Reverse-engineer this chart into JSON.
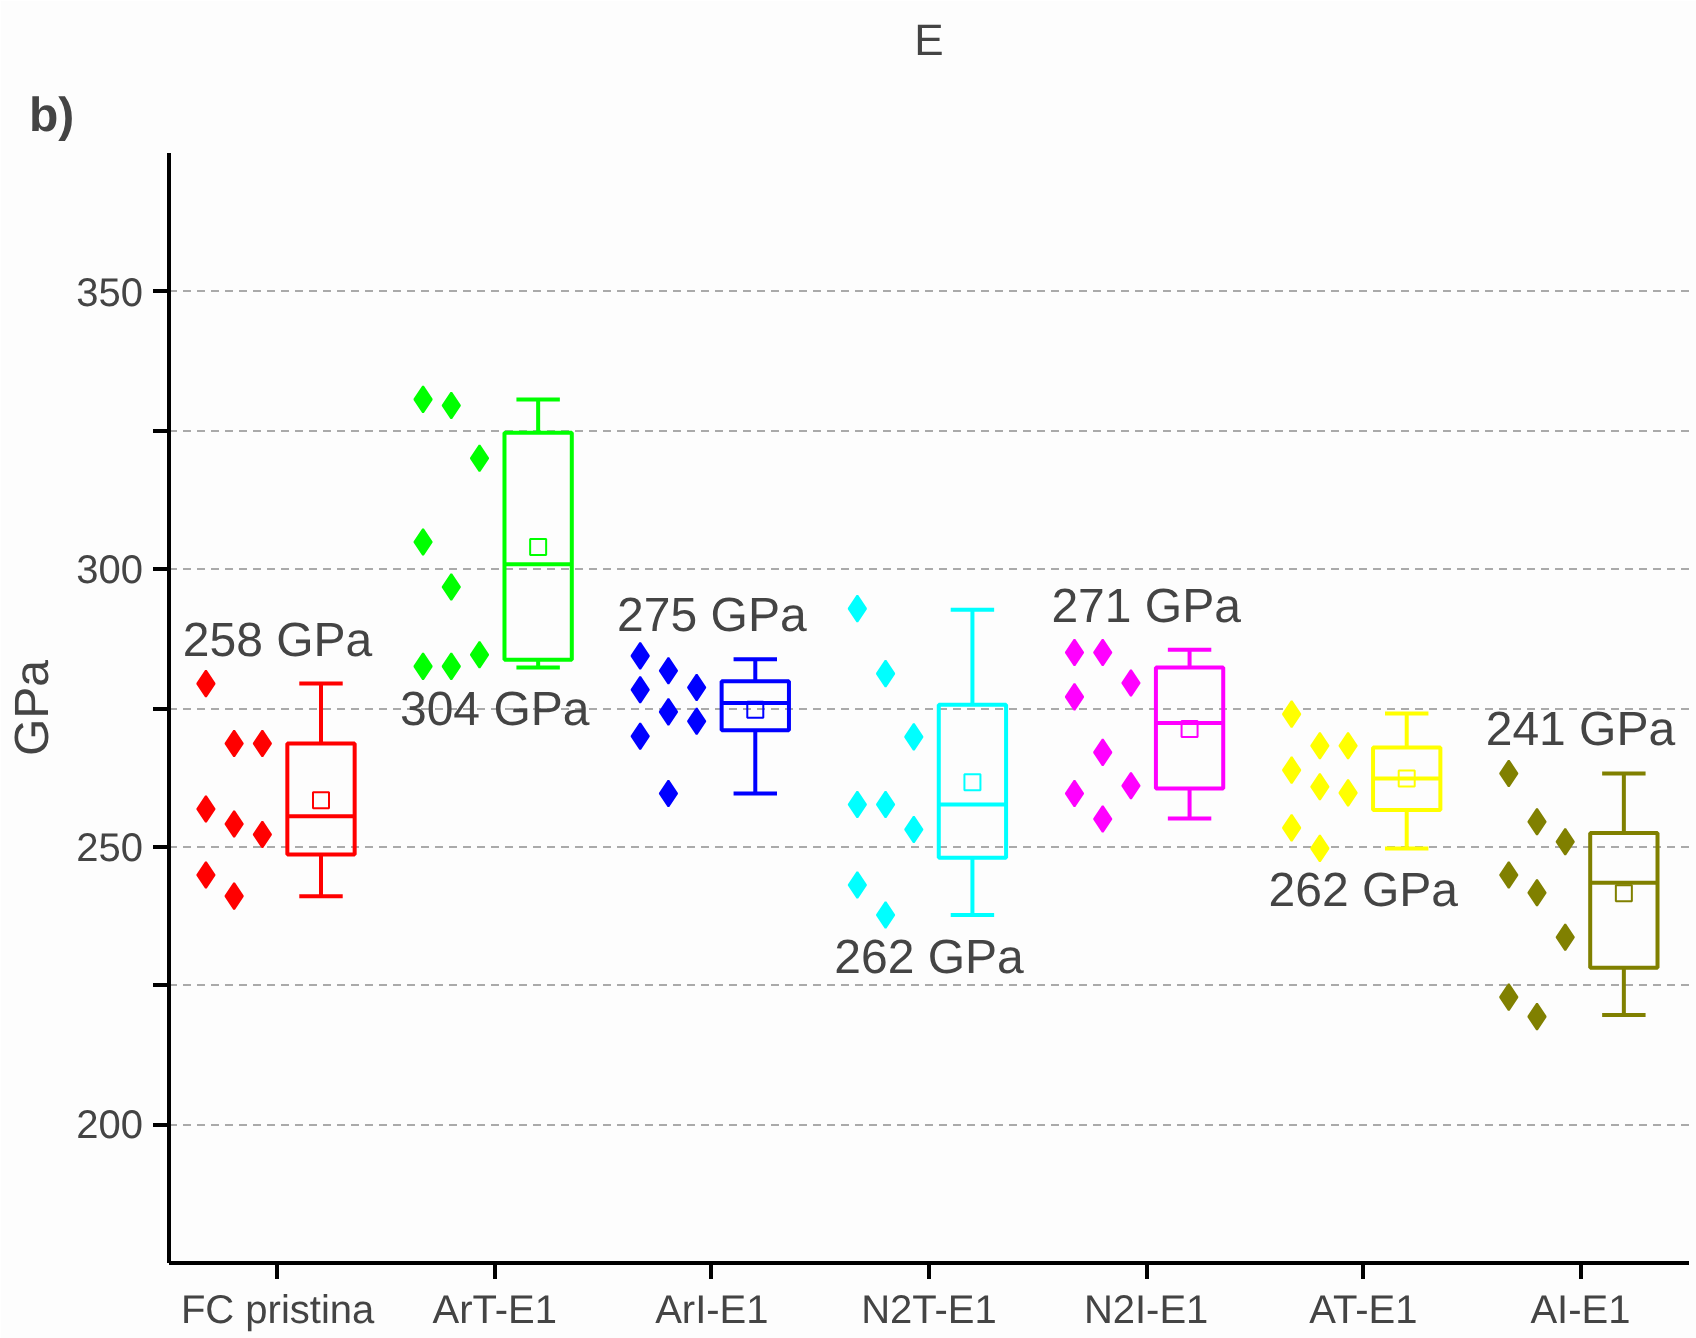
{
  "chart_data": {
    "type": "box",
    "title": "E",
    "ylabel": "GPa",
    "categories": [
      "FC pristina",
      "ArT-E1",
      "ArI-E1",
      "N2T-E1",
      "N2I-E1",
      "AT-E1",
      "AI-E1"
    ],
    "colors": [
      "#ff0000",
      "#00ff00",
      "#0000ff",
      "#00ffff",
      "#ff00ff",
      "#ffff00",
      "#808000"
    ],
    "boxes": [
      {
        "low": 241.1,
        "q1": 248.6,
        "median": 255.5,
        "q3": 268.6,
        "high": 279.4,
        "mean": 258.4
      },
      {
        "low": 282.3,
        "q1": 283.7,
        "median": 300.9,
        "q3": 324.6,
        "high": 330.6,
        "mean": 304
      },
      {
        "low": 259.6,
        "q1": 271,
        "median": 275.9,
        "q3": 279.8,
        "high": 283.8,
        "mean": 274.7
      },
      {
        "low": 237.7,
        "q1": 248,
        "median": 257.6,
        "q3": 275.6,
        "high": 292.7,
        "mean": 261.6
      },
      {
        "low": 255.1,
        "q1": 260.5,
        "median": 272.3,
        "q3": 282.3,
        "high": 285.5,
        "mean": 271.2
      },
      {
        "low": 249.7,
        "q1": 256.6,
        "median": 262.3,
        "q3": 267.9,
        "high": 274,
        "mean": 262.3
      },
      {
        "low": 219.7,
        "q1": 228.2,
        "median": 243.5,
        "q3": 252.5,
        "high": 263.2,
        "mean": 241.6
      }
    ],
    "series": [
      {
        "type": "scatter",
        "color": "#ff0000",
        "x": [
          "FC pristina",
          "FC pristina",
          "FC pristina",
          "FC pristina",
          "FC pristina",
          "FC pristina",
          "FC pristina",
          "FC pristina"
        ],
        "values": [
          279.4,
          268.6,
          268.6,
          256.8,
          254.1,
          252.2,
          244.9,
          241.1
        ]
      },
      {
        "type": "scatter",
        "color": "#00ff00",
        "x": [
          "ArT-E1",
          "ArT-E1",
          "ArT-E1",
          "ArT-E1",
          "ArT-E1",
          "ArT-E1",
          "ArT-E1",
          "ArT-E1"
        ],
        "values": [
          330.6,
          329.5,
          320,
          304.9,
          296.8,
          284.6,
          282.5,
          282.5
        ]
      },
      {
        "type": "scatter",
        "color": "#0000ff",
        "x": [
          "ArI-E1",
          "ArI-E1",
          "ArI-E1",
          "ArI-E1",
          "ArI-E1",
          "ArI-E1",
          "ArI-E1",
          "ArI-E1"
        ],
        "values": [
          284.4,
          281.7,
          278.7,
          278.3,
          274.3,
          272.6,
          269.9,
          259.6
        ]
      },
      {
        "type": "scatter",
        "color": "#00ffff",
        "x": [
          "N2T-E1",
          "N2T-E1",
          "N2T-E1",
          "N2T-E1",
          "N2T-E1",
          "N2T-E1",
          "N2T-E1",
          "N2T-E1"
        ],
        "values": [
          292.9,
          281.2,
          269.8,
          257.6,
          257.6,
          253.1,
          243.1,
          237.7
        ]
      },
      {
        "type": "scatter",
        "color": "#ff00ff",
        "x": [
          "N2I-E1",
          "N2I-E1",
          "N2I-E1",
          "N2I-E1",
          "N2I-E1",
          "N2I-E1",
          "N2I-E1",
          "N2I-E1"
        ],
        "values": [
          285,
          285,
          279.5,
          277,
          267,
          261,
          259.6,
          255
        ]
      },
      {
        "type": "scatter",
        "color": "#ffff00",
        "x": [
          "AT-E1",
          "AT-E1",
          "AT-E1",
          "AT-E1",
          "AT-E1",
          "AT-E1",
          "AT-E1",
          "AT-E1"
        ],
        "values": [
          273.9,
          268.2,
          268.2,
          263.8,
          260.8,
          259.7,
          253.4,
          249.7
        ]
      },
      {
        "type": "scatter",
        "color": "#808000",
        "x": [
          "AI-E1",
          "AI-E1",
          "AI-E1",
          "AI-E1",
          "AI-E1",
          "AI-E1",
          "AI-E1",
          "AI-E1"
        ],
        "values": [
          263.2,
          254.5,
          250.9,
          244.9,
          241.7,
          233.7,
          222.9,
          219.4
        ]
      }
    ],
    "marker": "diamond",
    "ylim": [
      175,
      375
    ],
    "yticks": [
      200,
      {
        "value": 225,
        "label": null
      },
      250,
      {
        "value": 275,
        "label": null
      },
      300,
      {
        "value": 325,
        "label": null
      },
      350
    ],
    "grid": "y",
    "annotations": [
      "b)",
      "258 GPa",
      "304 GPa",
      "275 GPa",
      "262 GPa",
      "271 GPa",
      "262 GPa",
      "241 GPa"
    ]
  }
}
